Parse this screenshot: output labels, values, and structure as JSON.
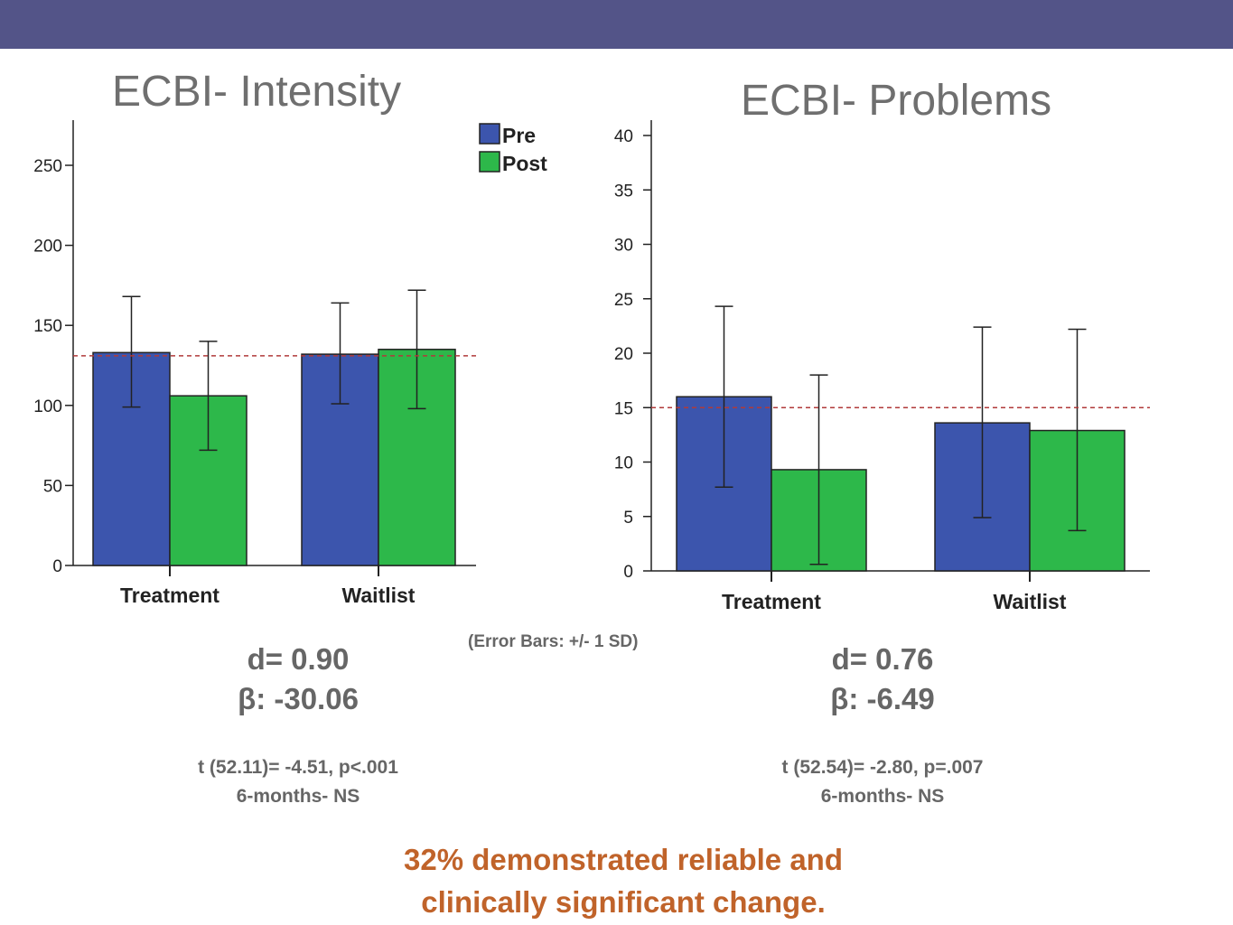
{
  "header": {
    "bar_color": "#535488"
  },
  "colors": {
    "pre": "#3c55ad",
    "post": "#2db84a",
    "reference_line": "#b03a3a",
    "stats_text": "#666666",
    "footer_text": "#c0632a"
  },
  "legend": {
    "pre": "Pre",
    "post": "Post"
  },
  "chart_data": [
    {
      "type": "bar",
      "title": "ECBI- Intensity",
      "categories": [
        "Treatment",
        "Waitlist"
      ],
      "series": [
        {
          "name": "Pre",
          "values": [
            133,
            132
          ],
          "error_low": [
            99,
            101
          ],
          "error_high": [
            168,
            164
          ]
        },
        {
          "name": "Post",
          "values": [
            106,
            135
          ],
          "error_low": [
            72,
            98
          ],
          "error_high": [
            140,
            172
          ]
        }
      ],
      "ylim": [
        0,
        270
      ],
      "yticks": [
        "0",
        "50",
        "100",
        "150",
        "200",
        "250"
      ],
      "reference_line": 131,
      "legend_position": "top-right"
    },
    {
      "type": "bar",
      "title": "ECBI- Problems",
      "categories": [
        "Treatment",
        "Waitlist"
      ],
      "series": [
        {
          "name": "Pre",
          "values": [
            16,
            13.6
          ],
          "error_low": [
            7.7,
            4.9
          ],
          "error_high": [
            24.3,
            22.4
          ]
        },
        {
          "name": "Post",
          "values": [
            9.3,
            12.9
          ],
          "error_low": [
            0.6,
            3.7
          ],
          "error_high": [
            18.0,
            22.2
          ]
        }
      ],
      "ylim": [
        0,
        40
      ],
      "yticks": [
        "0",
        "5",
        "10",
        "15",
        "20",
        "25",
        "30",
        "35",
        "40"
      ],
      "reference_line": 15
    }
  ],
  "stats": {
    "left": {
      "d": "d= 0.90",
      "beta": "β: -30.06",
      "t": "t (52.11)= -4.51, p<.001",
      "followup": "6-months- NS"
    },
    "right": {
      "d": "d= 0.76",
      "beta": "β: -6.49",
      "t": "t (52.54)= -2.80, p=.007",
      "followup": "6-months- NS"
    }
  },
  "note": "(Error Bars: +/- 1 SD)",
  "footer": {
    "line1": "32% demonstrated reliable and",
    "line2": "clinically significant change."
  }
}
